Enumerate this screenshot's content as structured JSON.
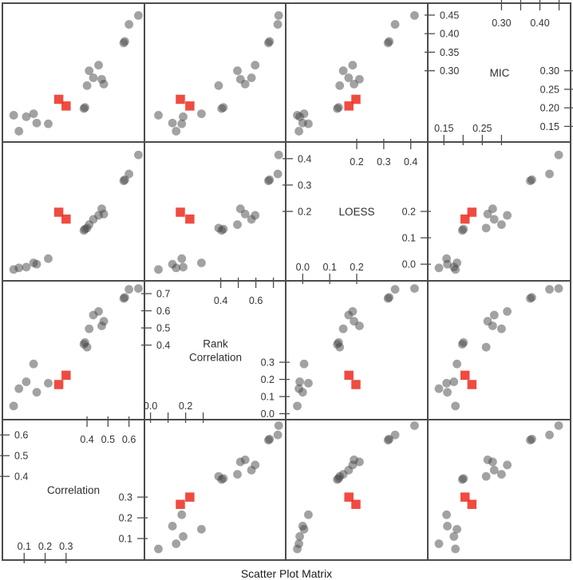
{
  "title": "Scatter Plot Matrix",
  "colors": {
    "background": "#ffffff",
    "panel_border": "#4c4c4c",
    "tick_color": "#4c4c4c",
    "tick_label_color": "#333333",
    "name_color": "#2e2e2e",
    "title_color": "#1a1a1a",
    "point_fill": "#464646",
    "point_opacity": 0.5,
    "highlight_fill": "#ed3227",
    "highlight_opacity": 0.88
  },
  "chart_data": {
    "type": "scatter",
    "subtype": "scatter-plot-matrix",
    "title": "Scatter Plot Matrix",
    "diagonal_order": "bottom-left to top-right",
    "legend": "none",
    "grid": "off",
    "variables": [
      {
        "key": "correlation",
        "name": "Correlation",
        "lines": [
          "Correlation"
        ],
        "range": [
          0.0,
          0.67
        ],
        "ticks_high": [
          {
            "v": 0.4,
            "left": "0.4",
            "top": "0.4"
          },
          {
            "v": 0.5,
            "left": "0.5",
            "top": "0.5"
          },
          {
            "v": 0.6,
            "left": "0.6",
            "top": "0.6"
          }
        ],
        "ticks_low": [
          {
            "v": 0.1,
            "right": "0.1",
            "bottom": "0.1"
          },
          {
            "v": 0.2,
            "right": "0.2",
            "bottom": "0.2"
          },
          {
            "v": 0.3,
            "right": "0.3",
            "bottom": "0.3"
          }
        ]
      },
      {
        "key": "rank_correlation",
        "name": "Rank Correlation",
        "lines": [
          "Rank",
          "Correlation"
        ],
        "range": [
          -0.03,
          0.77
        ],
        "ticks_high": [
          {
            "v": 0.4,
            "left": "0.4",
            "top": "0.4"
          },
          {
            "v": 0.5,
            "left": "0.5",
            "top": ""
          },
          {
            "v": 0.6,
            "left": "0.6",
            "top": "0.6"
          },
          {
            "v": 0.7,
            "left": "0.7",
            "top": ""
          }
        ],
        "ticks_low": [
          {
            "v": 0.0,
            "right": "0.0",
            "bottom": "0.0"
          },
          {
            "v": 0.1,
            "right": "0.1",
            "bottom": ""
          },
          {
            "v": 0.2,
            "right": "0.2",
            "bottom": "0.2"
          },
          {
            "v": 0.3,
            "right": "0.3",
            "bottom": ""
          }
        ]
      },
      {
        "key": "loess",
        "name": "LOESS",
        "lines": [
          "LOESS"
        ],
        "range": [
          -0.06,
          0.46
        ],
        "ticks_high": [
          {
            "v": 0.2,
            "left": "0.2",
            "top": "0.2"
          },
          {
            "v": 0.3,
            "left": "0.3",
            "top": "0.3"
          },
          {
            "v": 0.4,
            "left": "0.4",
            "top": "0.4"
          }
        ],
        "ticks_low": [
          {
            "v": 0.0,
            "right": "0.0",
            "bottom": "0.0"
          },
          {
            "v": 0.1,
            "right": "0.1",
            "bottom": "0.1"
          },
          {
            "v": 0.2,
            "right": "0.2",
            "bottom": "0.2"
          }
        ]
      },
      {
        "key": "mic",
        "name": "MIC",
        "lines": [
          "MIC"
        ],
        "range": [
          0.11,
          0.48
        ],
        "ticks_high": [
          {
            "v": 0.3,
            "left": "0.30",
            "top": "0.30"
          },
          {
            "v": 0.35,
            "left": "0.35",
            "top": ""
          },
          {
            "v": 0.4,
            "left": "0.40",
            "top": "0.40"
          },
          {
            "v": 0.45,
            "left": "0.45",
            "top": ""
          }
        ],
        "ticks_low": [
          {
            "v": 0.15,
            "right": "0.15",
            "bottom": "0.15"
          },
          {
            "v": 0.2,
            "right": "0.20",
            "bottom": ""
          },
          {
            "v": 0.25,
            "right": "0.25",
            "bottom": "0.25"
          },
          {
            "v": 0.3,
            "right": "0.30",
            "bottom": ""
          }
        ]
      }
    ],
    "points": [
      {
        "correlation": 0.05,
        "rank_correlation": 0.045,
        "loess": -0.02,
        "mic": 0.18,
        "highlight": false
      },
      {
        "correlation": 0.075,
        "rank_correlation": 0.146,
        "loess": -0.014,
        "mic": 0.137,
        "highlight": false
      },
      {
        "correlation": 0.11,
        "rank_correlation": 0.186,
        "loess": -0.011,
        "mic": 0.176,
        "highlight": false
      },
      {
        "correlation": 0.145,
        "rank_correlation": 0.29,
        "loess": 0.005,
        "mic": 0.184,
        "highlight": false
      },
      {
        "correlation": 0.16,
        "rank_correlation": 0.125,
        "loess": 0.0,
        "mic": 0.159,
        "highlight": false
      },
      {
        "correlation": 0.215,
        "rank_correlation": 0.178,
        "loess": 0.021,
        "mic": 0.157,
        "highlight": false
      },
      {
        "correlation": 0.265,
        "rank_correlation": 0.17,
        "loess": 0.197,
        "mic": 0.223,
        "highlight": true
      },
      {
        "correlation": 0.3,
        "rank_correlation": 0.224,
        "loess": 0.171,
        "mic": 0.205,
        "highlight": true
      },
      {
        "correlation": 0.385,
        "rank_correlation": 0.405,
        "loess": 0.128,
        "mic": 0.198,
        "highlight": false
      },
      {
        "correlation": 0.39,
        "rank_correlation": 0.415,
        "loess": 0.133,
        "mic": 0.201,
        "highlight": false
      },
      {
        "correlation": 0.4,
        "rank_correlation": 0.388,
        "loess": 0.137,
        "mic": 0.26,
        "highlight": false
      },
      {
        "correlation": 0.41,
        "rank_correlation": 0.495,
        "loess": 0.15,
        "mic": 0.3,
        "highlight": false
      },
      {
        "correlation": 0.43,
        "rank_correlation": 0.575,
        "loess": 0.17,
        "mic": 0.281,
        "highlight": false
      },
      {
        "correlation": 0.455,
        "rank_correlation": 0.596,
        "loess": 0.185,
        "mic": 0.315,
        "highlight": false
      },
      {
        "correlation": 0.47,
        "rank_correlation": 0.512,
        "loess": 0.21,
        "mic": 0.277,
        "highlight": false
      },
      {
        "correlation": 0.48,
        "rank_correlation": 0.539,
        "loess": 0.19,
        "mic": 0.264,
        "highlight": false
      },
      {
        "correlation": 0.575,
        "rank_correlation": 0.672,
        "loess": 0.316,
        "mic": 0.375,
        "highlight": false
      },
      {
        "correlation": 0.58,
        "rank_correlation": 0.678,
        "loess": 0.32,
        "mic": 0.379,
        "highlight": false
      },
      {
        "correlation": 0.6,
        "rank_correlation": 0.725,
        "loess": 0.342,
        "mic": 0.425,
        "highlight": false
      },
      {
        "correlation": 0.645,
        "rank_correlation": 0.73,
        "loess": 0.414,
        "mic": 0.449,
        "highlight": false
      }
    ]
  }
}
